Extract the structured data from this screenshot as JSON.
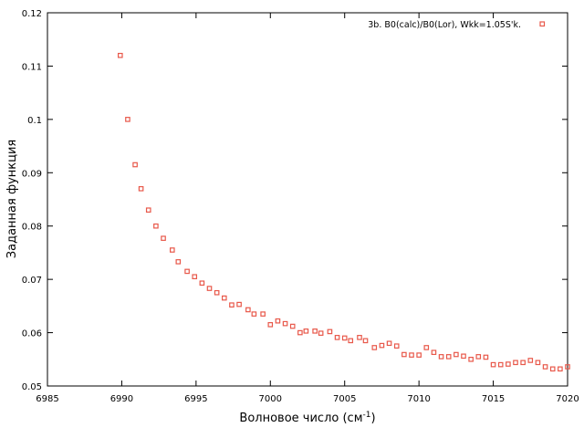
{
  "chart_data": {
    "type": "scatter",
    "xlabel_main": "Волновое число (см",
    "xlabel_sup": "-1",
    "xlabel_end": ")",
    "ylabel": "Заданная функция",
    "xlim": [
      6985,
      7020
    ],
    "ylim": [
      0.05,
      0.12
    ],
    "xticks": [
      6985,
      6990,
      6995,
      7000,
      7005,
      7010,
      7015,
      7020
    ],
    "yticks": [
      0.05,
      0.06,
      0.07,
      0.08,
      0.09,
      0.1,
      0.11,
      0.12
    ],
    "grid": false,
    "legend_position": "top-right",
    "series": [
      {
        "name": "3b. B0(calc)/B0(Lor), Wkk=1.05S'k.",
        "color": "#e8584a",
        "x": [
          6989.9,
          6990.4,
          6990.9,
          6991.3,
          6991.8,
          6992.3,
          6992.8,
          6993.4,
          6993.8,
          6994.4,
          6994.9,
          6995.4,
          6995.9,
          6996.4,
          6996.9,
          6997.4,
          6997.9,
          6998.5,
          6998.9,
          6999.5,
          7000.0,
          7000.5,
          7001.0,
          7001.5,
          7002.0,
          7002.4,
          7003.0,
          7003.4,
          7004.0,
          7004.5,
          7005.0,
          7005.4,
          7006.0,
          7006.4,
          7007.0,
          7007.5,
          7008.0,
          7008.5,
          7009.0,
          7009.5,
          7010.0,
          7010.5,
          7011.0,
          7011.5,
          7012.0,
          7012.5,
          7013.0,
          7013.5,
          7014.0,
          7014.5,
          7015.0,
          7015.5,
          7016.0,
          7016.5,
          7017.0,
          7017.5,
          7018.0,
          7018.5,
          7019.0,
          7019.5,
          7020.0
        ],
        "y": [
          0.112,
          0.1,
          0.0915,
          0.087,
          0.083,
          0.08,
          0.0777,
          0.0755,
          0.0733,
          0.0715,
          0.0705,
          0.0693,
          0.0683,
          0.0675,
          0.0665,
          0.0652,
          0.0653,
          0.0643,
          0.0635,
          0.0635,
          0.0615,
          0.0622,
          0.0617,
          0.0612,
          0.06,
          0.0603,
          0.0603,
          0.0599,
          0.0602,
          0.0591,
          0.059,
          0.0585,
          0.0591,
          0.0585,
          0.0572,
          0.0576,
          0.058,
          0.0575,
          0.0559,
          0.0558,
          0.0558,
          0.0572,
          0.0563,
          0.0555,
          0.0555,
          0.0559,
          0.0556,
          0.055,
          0.0555,
          0.0554,
          0.054,
          0.054,
          0.0541,
          0.0544,
          0.0544,
          0.0548,
          0.0544,
          0.0536,
          0.0532,
          0.0532,
          0.0536
        ]
      }
    ]
  }
}
